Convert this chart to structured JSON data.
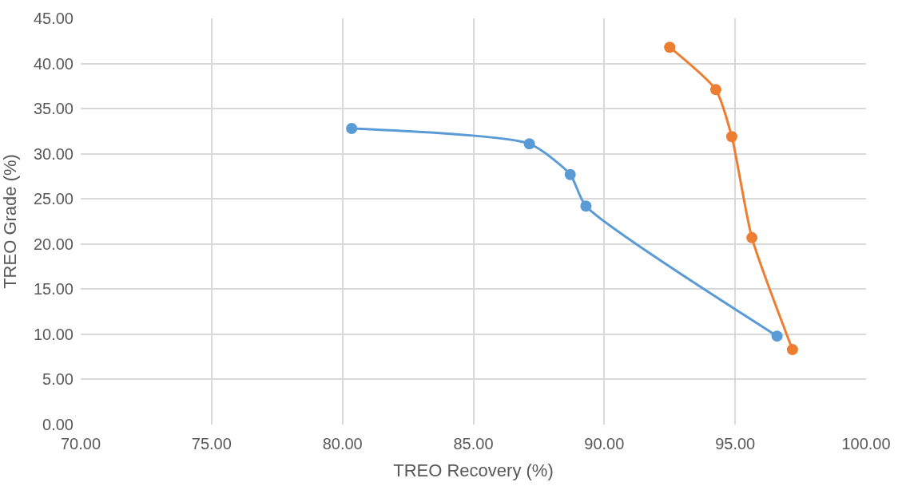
{
  "chart_data": {
    "type": "line",
    "xlabel": "TREO Recovery (%)",
    "ylabel": "TREO Grade (%)",
    "series": [
      {
        "color": "#5b9bd5",
        "x": [
          80.35,
          87.14,
          88.7,
          89.3,
          96.6
        ],
        "values": [
          32.8,
          31.1,
          27.7,
          24.2,
          9.8
        ]
      },
      {
        "color": "#ed7d31",
        "x": [
          92.5,
          94.26,
          94.87,
          95.64,
          97.19
        ],
        "values": [
          41.8,
          37.1,
          31.9,
          20.7,
          8.3
        ]
      }
    ],
    "xlim": [
      70,
      100
    ],
    "xticks": [
      {
        "value": 70,
        "label": "70.00"
      },
      {
        "value": 75,
        "label": "75.00"
      },
      {
        "value": 80,
        "label": "80.00"
      },
      {
        "value": 85,
        "label": "85.00"
      },
      {
        "value": 90,
        "label": "90.00"
      },
      {
        "value": 95,
        "label": "95.00"
      },
      {
        "value": 100,
        "label": "100.00"
      }
    ],
    "ylim": [
      0,
      45
    ],
    "yticks": [
      {
        "value": 0,
        "label": "0.00"
      },
      {
        "value": 5,
        "label": "5.00"
      },
      {
        "value": 10,
        "label": "10.00"
      },
      {
        "value": 15,
        "label": "15.00"
      },
      {
        "value": 20,
        "label": "20.00"
      },
      {
        "value": 25,
        "label": "25.00"
      },
      {
        "value": 30,
        "label": "30.00"
      },
      {
        "value": 35,
        "label": "35.00"
      },
      {
        "value": 40,
        "label": "40.00"
      },
      {
        "value": 45,
        "label": "45.00"
      }
    ],
    "grid": true,
    "marker": "circle",
    "line_style": "solid"
  }
}
